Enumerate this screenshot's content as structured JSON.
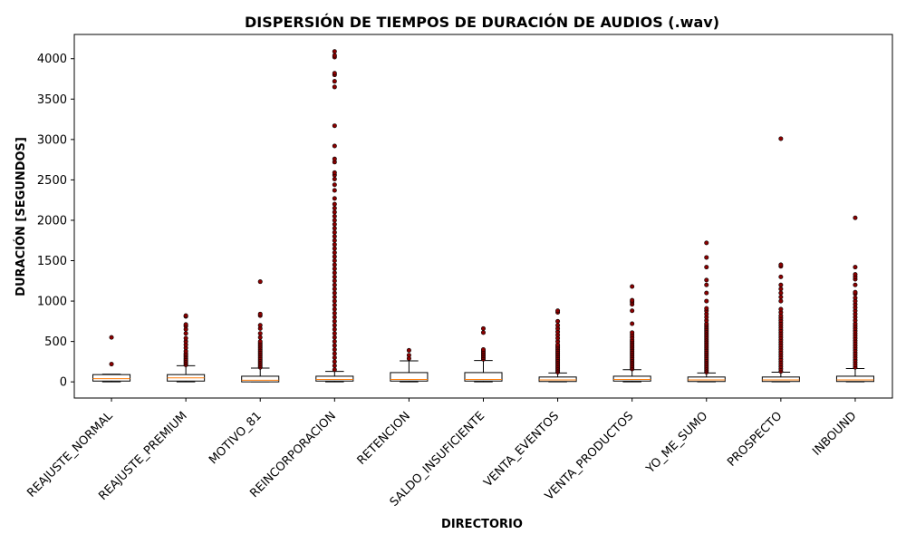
{
  "chart_data": {
    "type": "boxplot",
    "title": "DISPERSIÓN DE TIEMPOS DE DURACIÓN DE AUDIOS (.wav)",
    "xlabel": "DIRECTORIO",
    "ylabel": "DURACIÓN [SEGUNDOS]",
    "ylim": [
      -200,
      4300
    ],
    "yticks": [
      0,
      500,
      1000,
      1500,
      2000,
      2500,
      3000,
      3500,
      4000
    ],
    "colors": {
      "box_edge": "#000000",
      "median": "#ff7f0e",
      "outlier": "#8b0000"
    },
    "categories": [
      "REAJUSTE_NORMAL",
      "REAJUSTE_PREMIUM",
      "MOTIVO_81",
      "REINCORPORACION",
      "RETENCION",
      "SALDO_INSUFICIENTE",
      "VENTA_EVENTOS",
      "VENTA_PRODUCTOS",
      "YO_ME_SUMO",
      "PROSPECTO",
      "INBOUND"
    ],
    "boxes": [
      {
        "whislo": 0,
        "q1": 10,
        "med": 40,
        "q3": 90,
        "whishi": 95,
        "fliers": [
          220,
          550
        ]
      },
      {
        "whislo": 0,
        "q1": 10,
        "med": 50,
        "q3": 90,
        "whishi": 200,
        "fliers": [
          210,
          230,
          250,
          270,
          290,
          310,
          330,
          350,
          380,
          420,
          460,
          500,
          540,
          600,
          650,
          690,
          710,
          810,
          820
        ]
      },
      {
        "whislo": 0,
        "q1": 0,
        "med": 20,
        "q3": 70,
        "whishi": 170,
        "fliers": [
          180,
          200,
          220,
          240,
          260,
          280,
          300,
          320,
          340,
          360,
          380,
          400,
          420,
          440,
          460,
          480,
          500,
          550,
          600,
          660,
          700,
          820,
          840,
          1240
        ]
      },
      {
        "whislo": 0,
        "q1": 10,
        "med": 30,
        "q3": 70,
        "whishi": 130,
        "fliers": [
          150,
          200,
          250,
          300,
          350,
          400,
          450,
          500,
          550,
          600,
          650,
          700,
          750,
          800,
          850,
          900,
          950,
          1000,
          1050,
          1100,
          1150,
          1200,
          1250,
          1300,
          1350,
          1400,
          1450,
          1500,
          1550,
          1600,
          1650,
          1700,
          1750,
          1800,
          1850,
          1900,
          1950,
          2000,
          2050,
          2100,
          2150,
          2200,
          2270,
          2370,
          2440,
          2510,
          2560,
          2590,
          2720,
          2760,
          2920,
          3170,
          3650,
          3720,
          3800,
          3820,
          4020,
          4040,
          4090
        ]
      },
      {
        "whislo": 0,
        "q1": 10,
        "med": 30,
        "q3": 115,
        "whishi": 260,
        "fliers": [
          290,
          330,
          390
        ]
      },
      {
        "whislo": 0,
        "q1": 10,
        "med": 30,
        "q3": 115,
        "whishi": 265,
        "fliers": [
          280,
          300,
          320,
          340,
          360,
          380,
          400,
          610,
          660
        ]
      },
      {
        "whislo": 0,
        "q1": 5,
        "med": 25,
        "q3": 60,
        "whishi": 110,
        "fliers": [
          120,
          140,
          160,
          180,
          200,
          220,
          240,
          260,
          280,
          300,
          320,
          340,
          360,
          380,
          400,
          420,
          440,
          460,
          500,
          540,
          580,
          620,
          660,
          700,
          750,
          860,
          880
        ]
      },
      {
        "whislo": 0,
        "q1": 10,
        "med": 30,
        "q3": 70,
        "whishi": 150,
        "fliers": [
          160,
          180,
          200,
          220,
          240,
          260,
          280,
          300,
          320,
          340,
          360,
          380,
          400,
          420,
          440,
          460,
          480,
          500,
          520,
          550,
          580,
          610,
          720,
          880,
          960,
          990,
          1010,
          1180
        ]
      },
      {
        "whislo": 0,
        "q1": 5,
        "med": 25,
        "q3": 60,
        "whishi": 110,
        "fliers": [
          120,
          140,
          160,
          180,
          200,
          220,
          240,
          260,
          280,
          300,
          320,
          340,
          360,
          380,
          400,
          420,
          440,
          460,
          480,
          500,
          520,
          540,
          560,
          580,
          600,
          620,
          640,
          660,
          680,
          700,
          720,
          760,
          800,
          840,
          880,
          910,
          1000,
          1100,
          1200,
          1260,
          1420,
          1540,
          1720
        ]
      },
      {
        "whislo": 0,
        "q1": 5,
        "med": 25,
        "q3": 60,
        "whishi": 120,
        "fliers": [
          130,
          160,
          190,
          220,
          250,
          280,
          310,
          340,
          370,
          400,
          430,
          460,
          490,
          520,
          550,
          580,
          610,
          640,
          670,
          700,
          730,
          760,
          790,
          820,
          860,
          900,
          1000,
          1050,
          1100,
          1150,
          1200,
          1300,
          1430,
          1450,
          3010
        ]
      },
      {
        "whislo": 0,
        "q1": 5,
        "med": 25,
        "q3": 70,
        "whishi": 165,
        "fliers": [
          180,
          210,
          240,
          270,
          300,
          330,
          360,
          390,
          420,
          450,
          480,
          510,
          540,
          570,
          600,
          630,
          660,
          690,
          720,
          760,
          800,
          840,
          880,
          920,
          960,
          1000,
          1040,
          1090,
          1110,
          1200,
          1270,
          1300,
          1330,
          1420,
          2030
        ]
      }
    ]
  }
}
